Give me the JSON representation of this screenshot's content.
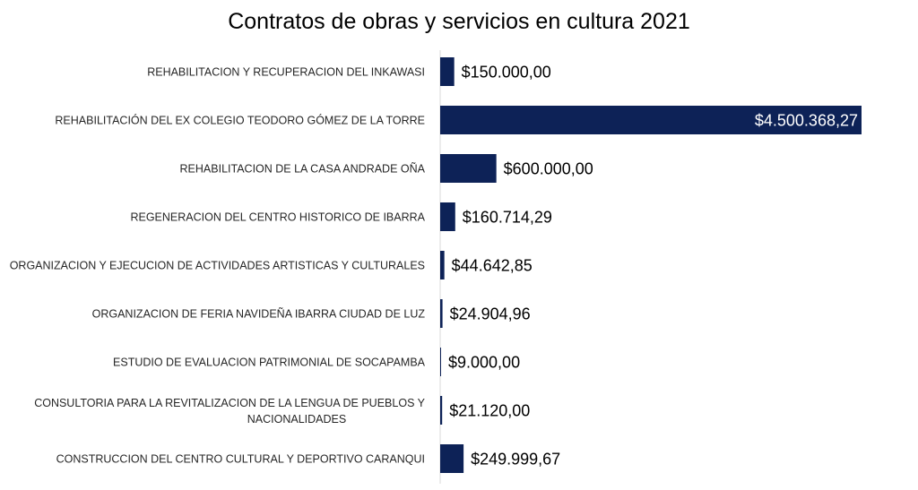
{
  "chart_data": {
    "type": "bar",
    "orientation": "horizontal",
    "title": "Contratos de obras y servicios en cultura 2021",
    "bar_color": "#0d2257",
    "categories": [
      "REHABILITACION Y RECUPERACION DEL INKAWASI",
      "REHABILITACIÓN DEL EX COLEGIO TEODORO GÓMEZ DE LA TORRE",
      "REHABILITACION DE LA CASA ANDRADE OÑA",
      "REGENERACION DEL CENTRO HISTORICO DE IBARRA",
      "ORGANIZACION Y EJECUCION DE ACTIVIDADES ARTISTICAS Y CULTURALES",
      "ORGANIZACION DE FERIA NAVIDEÑA IBARRA CIUDAD DE LUZ",
      "ESTUDIO DE EVALUACION PATRIMONIAL DE SOCAPAMBA",
      "CONSULTORIA PARA LA REVITALIZACION DE LA LENGUA DE PUEBLOS Y NACIONALIDADES",
      "CONSTRUCCION DEL CENTRO CULTURAL Y DEPORTIVO CARANQUI"
    ],
    "values": [
      150000.0,
      4500368.27,
      600000.0,
      160714.29,
      44642.85,
      24904.96,
      9000.0,
      21120.0,
      249999.67
    ],
    "value_labels": [
      "$150.000,00",
      "$4.500.368,27",
      "$600.000,00",
      "$160.714,29",
      "$44.642,85",
      "$24.904,96",
      "$9.000,00",
      "$21.120,00",
      "$249.999,67"
    ],
    "xlim": [
      0,
      4500368.27
    ],
    "grid": false,
    "legend": "none"
  }
}
